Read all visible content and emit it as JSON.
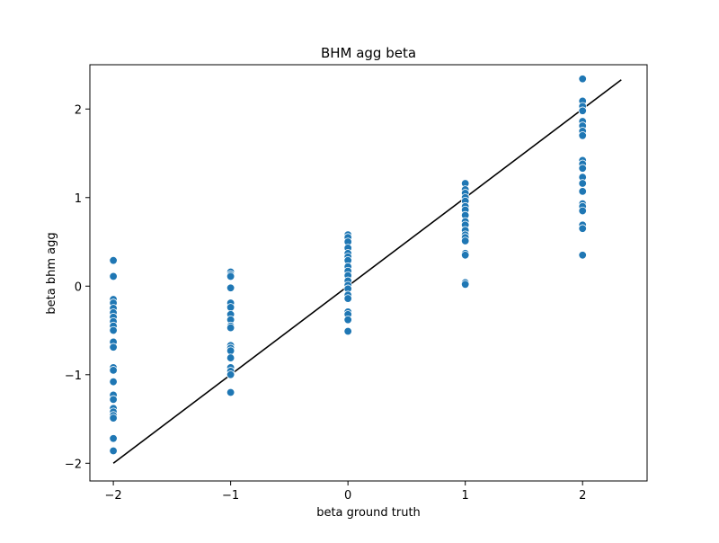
{
  "chart_data": {
    "type": "scatter",
    "title": "BHM agg beta",
    "xlabel": "beta ground truth",
    "ylabel": "beta bhm agg",
    "xlim": [
      -2.2,
      2.55
    ],
    "ylim": [
      -2.2,
      2.5
    ],
    "xticks": [
      -2,
      -1,
      0,
      1,
      2
    ],
    "yticks": [
      -2,
      -1,
      0,
      1,
      2
    ],
    "xtick_labels": [
      "−2",
      "−1",
      "0",
      "1",
      "2"
    ],
    "ytick_labels": [
      "−2",
      "−1",
      "0",
      "1",
      "2"
    ],
    "grid": false,
    "marker_color": "#1f77b4",
    "line_color": "#000000",
    "reference_line": {
      "x": [
        -2,
        2.33
      ],
      "y": [
        -2,
        2.33
      ]
    },
    "points": [
      {
        "x": -2,
        "y": 0.29
      },
      {
        "x": -2,
        "y": 0.11
      },
      {
        "x": -2,
        "y": -0.15
      },
      {
        "x": -2,
        "y": -0.19
      },
      {
        "x": -2,
        "y": -0.25
      },
      {
        "x": -2,
        "y": -0.3
      },
      {
        "x": -2,
        "y": -0.35
      },
      {
        "x": -2,
        "y": -0.4
      },
      {
        "x": -2,
        "y": -0.45
      },
      {
        "x": -2,
        "y": -0.5
      },
      {
        "x": -2,
        "y": -0.63
      },
      {
        "x": -2,
        "y": -0.69
      },
      {
        "x": -2,
        "y": -0.92
      },
      {
        "x": -2,
        "y": -0.95
      },
      {
        "x": -2,
        "y": -1.08
      },
      {
        "x": -2,
        "y": -1.23
      },
      {
        "x": -2,
        "y": -1.28
      },
      {
        "x": -2,
        "y": -1.38
      },
      {
        "x": -2,
        "y": -1.42
      },
      {
        "x": -2,
        "y": -1.46
      },
      {
        "x": -2,
        "y": -1.49
      },
      {
        "x": -2,
        "y": -1.72
      },
      {
        "x": -2,
        "y": -1.86
      },
      {
        "x": -1,
        "y": 0.16
      },
      {
        "x": -1,
        "y": 0.13
      },
      {
        "x": -1,
        "y": 0.11
      },
      {
        "x": -1,
        "y": -0.02
      },
      {
        "x": -1,
        "y": -0.19
      },
      {
        "x": -1,
        "y": -0.24
      },
      {
        "x": -1,
        "y": -0.32
      },
      {
        "x": -1,
        "y": -0.38
      },
      {
        "x": -1,
        "y": -0.45
      },
      {
        "x": -1,
        "y": -0.47
      },
      {
        "x": -1,
        "y": -0.67
      },
      {
        "x": -1,
        "y": -0.7
      },
      {
        "x": -1,
        "y": -0.73
      },
      {
        "x": -1,
        "y": -0.81
      },
      {
        "x": -1,
        "y": -0.92
      },
      {
        "x": -1,
        "y": -0.96
      },
      {
        "x": -1,
        "y": -1.0
      },
      {
        "x": -1,
        "y": -1.2
      },
      {
        "x": 0,
        "y": 0.58
      },
      {
        "x": 0,
        "y": 0.55
      },
      {
        "x": 0,
        "y": 0.5
      },
      {
        "x": 0,
        "y": 0.43
      },
      {
        "x": 0,
        "y": 0.37
      },
      {
        "x": 0,
        "y": 0.33
      },
      {
        "x": 0,
        "y": 0.29
      },
      {
        "x": 0,
        "y": 0.22
      },
      {
        "x": 0,
        "y": 0.17
      },
      {
        "x": 0,
        "y": 0.12
      },
      {
        "x": 0,
        "y": 0.06
      },
      {
        "x": 0,
        "y": 0.01
      },
      {
        "x": 0,
        "y": -0.03
      },
      {
        "x": 0,
        "y": -0.1
      },
      {
        "x": 0,
        "y": -0.14
      },
      {
        "x": 0,
        "y": -0.29
      },
      {
        "x": 0,
        "y": -0.32
      },
      {
        "x": 0,
        "y": -0.38
      },
      {
        "x": 0,
        "y": -0.51
      },
      {
        "x": 1,
        "y": 1.16
      },
      {
        "x": 1,
        "y": 1.09
      },
      {
        "x": 1,
        "y": 1.05
      },
      {
        "x": 1,
        "y": 1.0
      },
      {
        "x": 1,
        "y": 0.96
      },
      {
        "x": 1,
        "y": 0.9
      },
      {
        "x": 1,
        "y": 0.86
      },
      {
        "x": 1,
        "y": 0.8
      },
      {
        "x": 1,
        "y": 0.73
      },
      {
        "x": 1,
        "y": 0.69
      },
      {
        "x": 1,
        "y": 0.63
      },
      {
        "x": 1,
        "y": 0.58
      },
      {
        "x": 1,
        "y": 0.55
      },
      {
        "x": 1,
        "y": 0.51
      },
      {
        "x": 1,
        "y": 0.37
      },
      {
        "x": 1,
        "y": 0.35
      },
      {
        "x": 1,
        "y": 0.04
      },
      {
        "x": 1,
        "y": 0.02
      },
      {
        "x": 2,
        "y": 2.34
      },
      {
        "x": 2,
        "y": 2.09
      },
      {
        "x": 2,
        "y": 2.03
      },
      {
        "x": 2,
        "y": 1.98
      },
      {
        "x": 2,
        "y": 1.86
      },
      {
        "x": 2,
        "y": 1.81
      },
      {
        "x": 2,
        "y": 1.75
      },
      {
        "x": 2,
        "y": 1.7
      },
      {
        "x": 2,
        "y": 1.42
      },
      {
        "x": 2,
        "y": 1.38
      },
      {
        "x": 2,
        "y": 1.33
      },
      {
        "x": 2,
        "y": 1.23
      },
      {
        "x": 2,
        "y": 1.16
      },
      {
        "x": 2,
        "y": 1.07
      },
      {
        "x": 2,
        "y": 0.93
      },
      {
        "x": 2,
        "y": 0.9
      },
      {
        "x": 2,
        "y": 0.85
      },
      {
        "x": 2,
        "y": 0.69
      },
      {
        "x": 2,
        "y": 0.65
      },
      {
        "x": 2,
        "y": 0.35
      }
    ]
  }
}
